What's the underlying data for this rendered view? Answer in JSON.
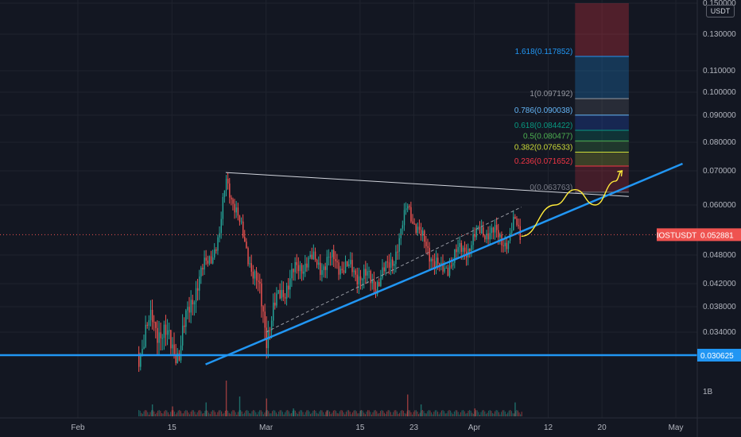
{
  "chart_data": {
    "type": "candlestick",
    "symbol": "IOSTUSDT",
    "quote_unit": "USDT",
    "last_price": "0.052881",
    "support_level": "0.030625",
    "y_axis_labels": [
      "0.150000",
      "0.130000",
      "0.110000",
      "0.100000",
      "0.090000",
      "0.080000",
      "0.070000",
      "0.060000",
      "0.048000",
      "0.042000",
      "0.038000",
      "0.034000"
    ],
    "x_axis_labels": [
      {
        "label": "Feb",
        "date": "2021-02-01"
      },
      {
        "label": "15",
        "date": "2021-02-15"
      },
      {
        "label": "Mar",
        "date": "2021-03-01"
      },
      {
        "label": "15",
        "date": "2021-03-15"
      },
      {
        "label": "23",
        "date": "2021-03-23"
      },
      {
        "label": "Apr",
        "date": "2021-04-01"
      },
      {
        "label": "12",
        "date": "2021-04-12"
      },
      {
        "label": "20",
        "date": "2021-04-20"
      },
      {
        "label": "May",
        "date": "2021-05-01"
      }
    ],
    "volume_axis_label": "1B",
    "fibonacci_levels": [
      {
        "ratio": "1.618",
        "label": "1.618(0.117852)",
        "price": 0.117852,
        "color": "#2196f3"
      },
      {
        "ratio": "1",
        "label": "1(0.097192)",
        "price": 0.097192,
        "color": "#9598a1"
      },
      {
        "ratio": "0.786",
        "label": "0.786(0.090038)",
        "price": 0.090038,
        "color": "#64b5f6"
      },
      {
        "ratio": "0.618",
        "label": "0.618(0.084422)",
        "price": 0.084422,
        "color": "#089981"
      },
      {
        "ratio": "0.5",
        "label": "0.5(0.080477)",
        "price": 0.080477,
        "color": "#4caf50"
      },
      {
        "ratio": "0.382",
        "label": "0.382(0.076533)",
        "price": 0.076533,
        "color": "#cddc39"
      },
      {
        "ratio": "0.236",
        "label": "0.236(0.071652)",
        "price": 0.071652,
        "color": "#f23645"
      },
      {
        "ratio": "0",
        "label": "0(0.063763)",
        "price": 0.063763,
        "color": "#787b86"
      }
    ],
    "price_path": [
      {
        "date": "2021-02-10",
        "value": 0.031
      },
      {
        "date": "2021-02-12",
        "value": 0.036
      },
      {
        "date": "2021-02-14",
        "value": 0.033
      },
      {
        "date": "2021-02-16",
        "value": 0.031
      },
      {
        "date": "2021-02-18",
        "value": 0.04
      },
      {
        "date": "2021-02-20",
        "value": 0.046
      },
      {
        "date": "2021-02-22",
        "value": 0.052
      },
      {
        "date": "2021-02-23",
        "value": 0.068
      },
      {
        "date": "2021-02-24",
        "value": 0.061
      },
      {
        "date": "2021-02-25",
        "value": 0.055
      },
      {
        "date": "2021-02-26",
        "value": 0.05
      },
      {
        "date": "2021-02-27",
        "value": 0.044
      },
      {
        "date": "2021-02-28",
        "value": 0.04
      },
      {
        "date": "2021-03-01",
        "value": 0.034
      },
      {
        "date": "2021-03-03",
        "value": 0.04
      },
      {
        "date": "2021-03-05",
        "value": 0.044
      },
      {
        "date": "2021-03-07",
        "value": 0.047
      },
      {
        "date": "2021-03-09",
        "value": 0.046
      },
      {
        "date": "2021-03-11",
        "value": 0.047
      },
      {
        "date": "2021-03-13",
        "value": 0.045
      },
      {
        "date": "2021-03-15",
        "value": 0.044
      },
      {
        "date": "2021-03-17",
        "value": 0.042
      },
      {
        "date": "2021-03-19",
        "value": 0.045
      },
      {
        "date": "2021-03-20",
        "value": 0.048
      },
      {
        "date": "2021-03-21",
        "value": 0.053
      },
      {
        "date": "2021-03-22",
        "value": 0.06
      },
      {
        "date": "2021-03-23",
        "value": 0.056
      },
      {
        "date": "2021-03-24",
        "value": 0.052
      },
      {
        "date": "2021-03-26",
        "value": 0.047
      },
      {
        "date": "2021-03-27",
        "value": 0.044
      },
      {
        "date": "2021-03-29",
        "value": 0.048
      },
      {
        "date": "2021-03-31",
        "value": 0.05
      },
      {
        "date": "2021-04-02",
        "value": 0.054
      },
      {
        "date": "2021-04-04",
        "value": 0.053
      },
      {
        "date": "2021-04-06",
        "value": 0.051
      },
      {
        "date": "2021-04-07",
        "value": 0.056
      },
      {
        "date": "2021-04-08",
        "value": 0.0529
      }
    ],
    "volume_bars": [
      {
        "date": "2021-02-12",
        "value": 0.3
      },
      {
        "date": "2021-02-15",
        "value": 0.25
      },
      {
        "date": "2021-02-20",
        "value": 0.35
      },
      {
        "date": "2021-02-23",
        "value": 0.9
      },
      {
        "date": "2021-02-25",
        "value": 0.5
      },
      {
        "date": "2021-03-01",
        "value": 0.45
      },
      {
        "date": "2021-03-05",
        "value": 0.2
      },
      {
        "date": "2021-03-10",
        "value": 0.15
      },
      {
        "date": "2021-03-15",
        "value": 0.15
      },
      {
        "date": "2021-03-22",
        "value": 0.55
      },
      {
        "date": "2021-03-24",
        "value": 0.3
      },
      {
        "date": "2021-04-01",
        "value": 0.2
      },
      {
        "date": "2021-04-07",
        "value": 0.35
      }
    ],
    "trendline_resistance": [
      {
        "date": "2021-02-23",
        "value": 0.0695
      },
      {
        "date": "2021-04-24",
        "value": 0.0625
      }
    ],
    "trendline_support": [
      {
        "date": "2021-02-20",
        "value": 0.029
      },
      {
        "date": "2021-05-02",
        "value": 0.0725
      }
    ],
    "dashed_line": [
      {
        "date": "2021-03-01",
        "value": 0.034
      },
      {
        "date": "2021-04-08",
        "value": 0.0595
      }
    ],
    "projection_path": [
      {
        "date": "2021-04-08",
        "value": 0.0525
      },
      {
        "date": "2021-04-13",
        "value": 0.06
      },
      {
        "date": "2021-04-16",
        "value": 0.0645
      },
      {
        "date": "2021-04-19",
        "value": 0.06
      },
      {
        "date": "2021-04-22",
        "value": 0.067
      },
      {
        "date": "2021-04-23",
        "value": 0.07
      }
    ],
    "target_box": {
      "from": "2021-04-16",
      "to": "2021-04-24",
      "top": 0.15,
      "bottom": 0.063763
    }
  }
}
